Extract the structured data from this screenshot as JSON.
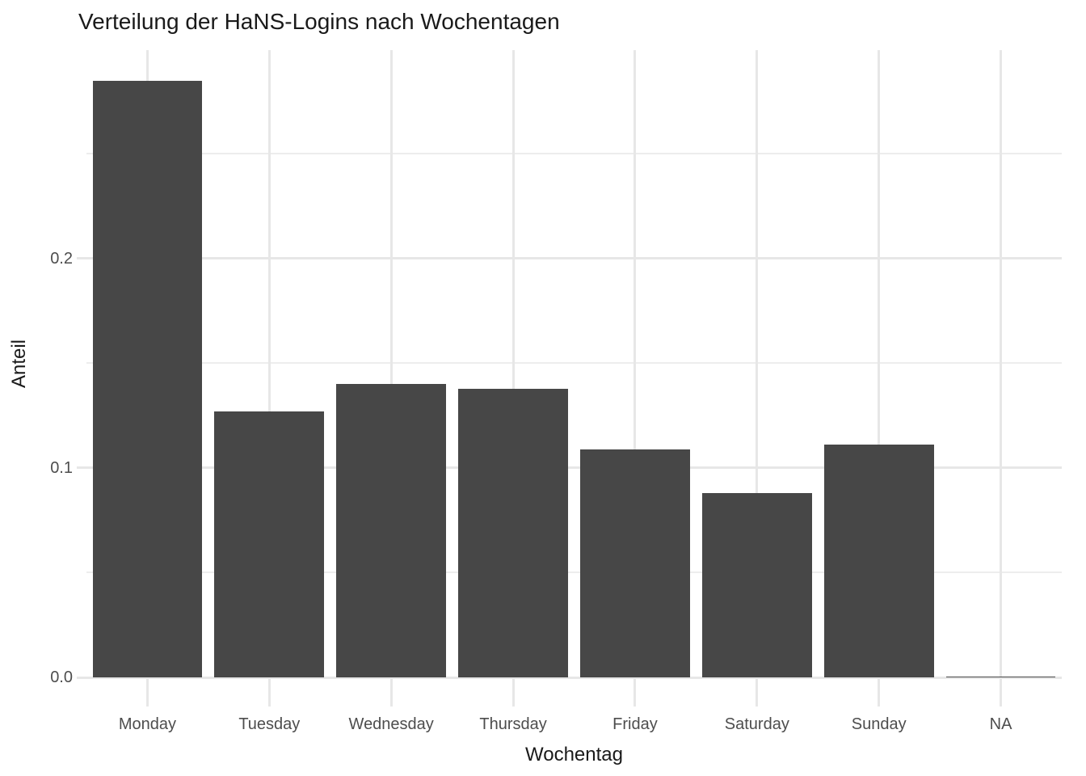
{
  "chart_data": {
    "type": "bar",
    "title": "Verteilung der HaNS-Logins nach Wochentagen",
    "xlabel": "Wochentag",
    "ylabel": "Anteil",
    "categories": [
      "Monday",
      "Tuesday",
      "Wednesday",
      "Thursday",
      "Friday",
      "Saturday",
      "Sunday",
      "NA"
    ],
    "values": [
      0.285,
      0.127,
      0.14,
      0.138,
      0.109,
      0.088,
      0.111,
      0.0005
    ],
    "ylim": [
      0,
      0.2996
    ],
    "y_major_ticks": {
      "values": [
        0,
        0.1,
        0.2
      ],
      "labels": [
        "0.0",
        "0.1",
        "0.2"
      ]
    },
    "y_minor_ticks": [
      0.05,
      0.15,
      0.25
    ],
    "grid": "horizontal major+minor, vertical major per category, on white background",
    "legend": "none",
    "colors": {
      "bar_fill": "#474747",
      "major_grid": "#e7e7e7",
      "minor_grid": "#ededed",
      "tick_label": "#4d4d4d",
      "title_text": "#1a1a1a",
      "background": "#ffffff"
    }
  }
}
